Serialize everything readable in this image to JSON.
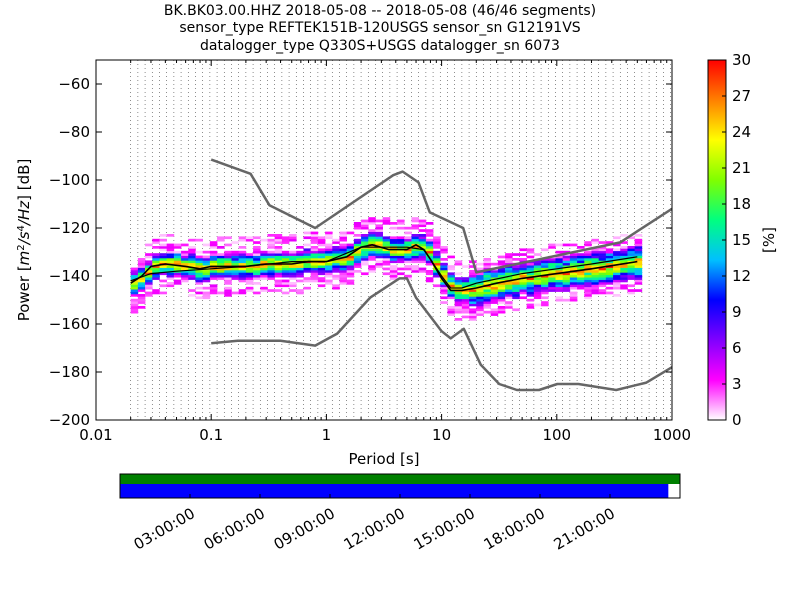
{
  "header": {
    "line1": "BK.BK03.00.HHZ   2018-05-08 -- 2018-05-08  (46/46 segments)",
    "line2": "sensor_type REFTEK151B-120USGS sensor_sn G12191VS",
    "line3": "datalogger_type Q330S+USGS datalogger_sn 6073"
  },
  "chart_data": {
    "type": "heatmap",
    "title": "BK.BK03.00.HHZ   2018-05-08 -- 2018-05-08  (46/46 segments)",
    "xlabel": "Period [s]",
    "ylabel": "Power [m²/s⁴/Hz] [dB]",
    "ylabel_parts": {
      "prefix": "Power [",
      "m": "m",
      "num_exp": "2",
      "slash1": "/s",
      "s_exp": "4",
      "slash2": "/Hz",
      "suffix": "] [dB]"
    },
    "x_scale": "log",
    "xlim": [
      0.01,
      1000
    ],
    "ylim": [
      -200,
      -50
    ],
    "x_ticks": [
      0.01,
      0.1,
      1,
      10,
      100,
      1000
    ],
    "x_tick_labels": [
      "0.01",
      "0.1",
      "1",
      "10",
      "100",
      "1000"
    ],
    "y_ticks": [
      -200,
      -180,
      -160,
      -140,
      -120,
      -100,
      -80,
      -60
    ],
    "y_tick_labels": [
      "−200",
      "−180",
      "−160",
      "−140",
      "−120",
      "−100",
      "−80",
      "−60"
    ],
    "grid": "dotted, vertical at period bins",
    "colorbar": {
      "label": "[%]",
      "range": [
        0,
        30
      ],
      "ticks": [
        0,
        3,
        6,
        9,
        12,
        15,
        18,
        21,
        24,
        27,
        30
      ],
      "tick_labels": [
        "0",
        "3",
        "6",
        "9",
        "12",
        "15",
        "18",
        "21",
        "24",
        "27",
        "30"
      ],
      "colormap": [
        "#ffffff",
        "#ff00ff",
        "#8000ff",
        "#0000ff",
        "#00c0ff",
        "#00ff80",
        "#80ff00",
        "#ffff00",
        "#ff8000",
        "#ff0000"
      ]
    },
    "nlnm": {
      "name": "NLNM",
      "color": "#666666",
      "x": [
        0.1,
        0.17,
        0.4,
        0.8,
        1.24,
        2.4,
        4.3,
        5.0,
        6.0,
        10,
        12,
        15.6,
        21.9,
        31.6,
        45,
        70,
        101,
        154,
        328,
        600,
        1000
      ],
      "y": [
        -168,
        -167,
        -167,
        -169,
        -164,
        -149,
        -141,
        -141,
        -149,
        -163,
        -166,
        -162,
        -177,
        -185,
        -187.5,
        -187.5,
        -185,
        -185,
        -187.5,
        -184.4,
        -178
      ]
    },
    "nhnm": {
      "name": "NHNM",
      "color": "#666666",
      "x": [
        0.1,
        0.22,
        0.32,
        0.8,
        3.8,
        4.6,
        6.3,
        7.9,
        15.4,
        20,
        354.8,
        1000
      ],
      "y": [
        -91.5,
        -97.4,
        -110.5,
        -120,
        -98,
        -96.5,
        -101,
        -113.5,
        -120,
        -138.5,
        -126,
        -112
      ]
    },
    "mode_curve": {
      "name": "mode",
      "color": "#000000",
      "x": [
        0.02,
        0.025,
        0.03,
        0.04,
        0.06,
        0.08,
        0.1,
        0.15,
        0.2,
        0.3,
        0.5,
        0.7,
        1.0,
        1.5,
        2.0,
        2.5,
        3.5,
        5.0,
        6.0,
        7.0,
        8.0,
        10,
        12,
        15,
        20,
        30,
        50,
        100,
        200,
        500
      ],
      "y": [
        -143,
        -140,
        -136,
        -135,
        -136,
        -137,
        -136,
        -136,
        -136,
        -135,
        -135,
        -134,
        -134,
        -132,
        -128,
        -127,
        -129,
        -129,
        -127,
        -129,
        -133,
        -141,
        -146,
        -146,
        -145,
        -143,
        -141,
        -139,
        -137,
        -134
      ]
    },
    "mean_curve": {
      "name": "mean",
      "color": "#000000",
      "x": [
        0.02,
        0.03,
        0.05,
        0.1,
        0.2,
        0.5,
        1.0,
        2.0,
        3.0,
        5.0,
        7.0,
        10,
        12,
        15,
        20,
        50,
        100,
        200,
        500
      ],
      "y": [
        -142,
        -139,
        -138,
        -137,
        -136,
        -134,
        -134,
        -128,
        -128,
        -128,
        -129,
        -140,
        -145,
        -145,
        -143,
        -139,
        -137,
        -135,
        -132
      ]
    },
    "time_axis": {
      "tick_labels": [
        "03:00:00",
        "06:00:00",
        "09:00:00",
        "12:00:00",
        "15:00:00",
        "18:00:00",
        "21:00:00"
      ],
      "tick_hours": [
        3,
        6,
        9,
        12,
        15,
        18,
        21
      ],
      "range_hours": [
        0,
        24
      ],
      "data_coverage_hours": [
        0,
        24
      ],
      "segments_coverage_hours": [
        0,
        23.5
      ],
      "coverage_color": "#008000",
      "segments_color": "#0000ff"
    }
  }
}
